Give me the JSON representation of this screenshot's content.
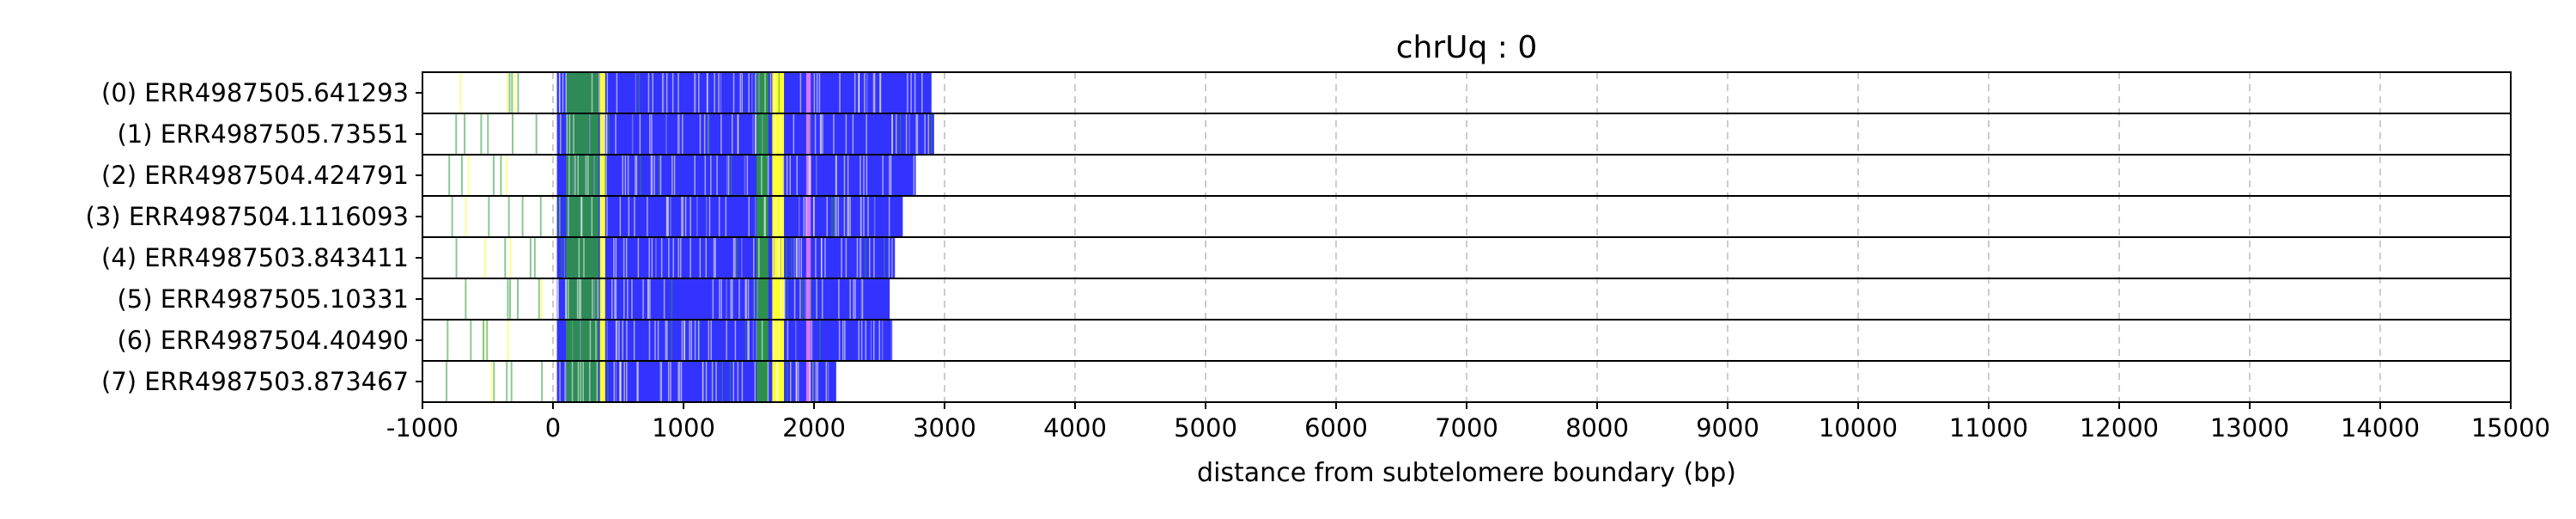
{
  "chart_data": {
    "type": "bar",
    "title": "chrUq : 0",
    "xlabel": "distance from subtelomere boundary (bp)",
    "ylabel": "",
    "xlim": [
      -1000,
      15000
    ],
    "xticks": [
      -1000,
      0,
      1000,
      2000,
      3000,
      4000,
      5000,
      6000,
      7000,
      8000,
      9000,
      10000,
      11000,
      12000,
      13000,
      14000,
      15000
    ],
    "grid": "x-dashed",
    "colors": {
      "repeat": "#3333ff",
      "green": "#2e9a3a",
      "yellow": "#ffff33",
      "pink": "#ff88ff",
      "frame": "#000000",
      "grid": "#cccccc"
    },
    "reads": [
      {
        "label": "(0) ERR4987505.641293",
        "end": 2900
      },
      {
        "label": "(1) ERR4987505.73551",
        "end": 2920
      },
      {
        "label": "(2) ERR4987504.424791",
        "end": 2780
      },
      {
        "label": "(3) ERR4987504.1116093",
        "end": 2680
      },
      {
        "label": "(4) ERR4987503.843411",
        "end": 2620
      },
      {
        "label": "(5) ERR4987505.10331",
        "end": 2580
      },
      {
        "label": "(6) ERR4987504.40490",
        "end": 2600
      },
      {
        "label": "(7) ERR4987503.873467",
        "end": 2170
      }
    ]
  }
}
